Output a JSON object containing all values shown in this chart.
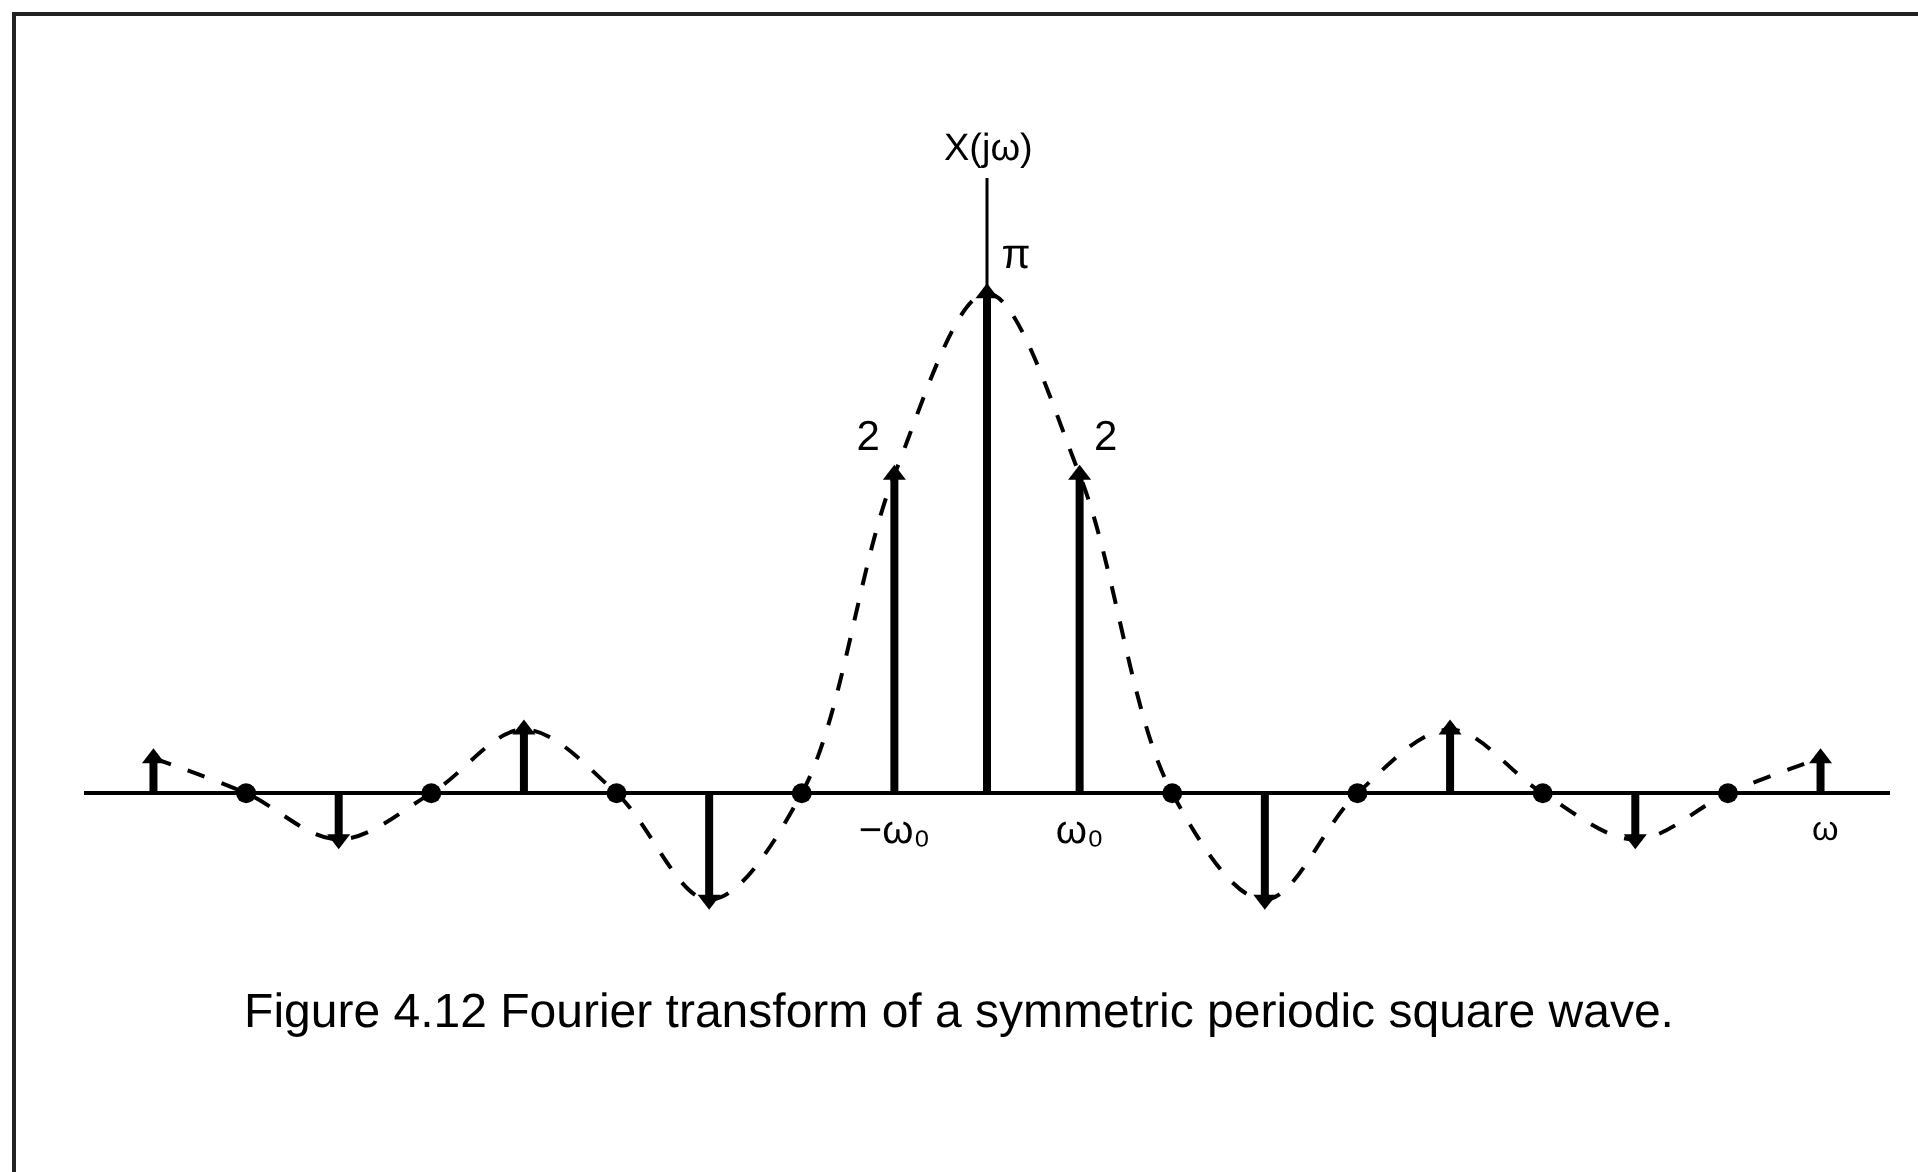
{
  "chart_data": {
    "type": "lollipop",
    "title": "Figure 4.12 Fourier transform of a symmetric periodic square wave.",
    "xlabel": "ω",
    "ylabel": "X(jω)",
    "categories": [
      null,
      null,
      null,
      null,
      null,
      null,
      null,
      null,
      "−ω₀",
      null,
      "ω₀",
      null,
      null,
      null,
      null,
      null,
      null,
      null,
      null
    ],
    "tick_labels": "x",
    "series": [
      {
        "color": "#000000",
        "marker": "triangle",
        "values": [
          0.22,
          null,
          -0.29,
          null,
          0.4,
          null,
          -0.67,
          null,
          2,
          3.14,
          2,
          null,
          -0.67,
          null,
          0.4,
          null,
          -0.29,
          null,
          0.22
        ],
        "value_labels": [
          null,
          null,
          null,
          null,
          null,
          null,
          null,
          null,
          "2",
          "π",
          "2",
          null,
          null,
          null,
          null,
          null,
          null,
          null,
          null
        ]
      },
      {
        "type": "scatter",
        "color": "#000000",
        "marker": "circle",
        "values": [
          null,
          0,
          null,
          0,
          null,
          0,
          null,
          0,
          null,
          null,
          null,
          0,
          null,
          0,
          null,
          0,
          null,
          0,
          null
        ]
      },
      {
        "type": "line",
        "color": "#000000",
        "line_style": "dashed",
        "marker": "none",
        "values": [
          0.22,
          0,
          -0.29,
          0,
          0.4,
          0,
          -0.67,
          0,
          2,
          3.14,
          2,
          0,
          -0.67,
          0,
          0.4,
          0,
          -0.29,
          0,
          0.22
        ]
      }
    ]
  }
}
